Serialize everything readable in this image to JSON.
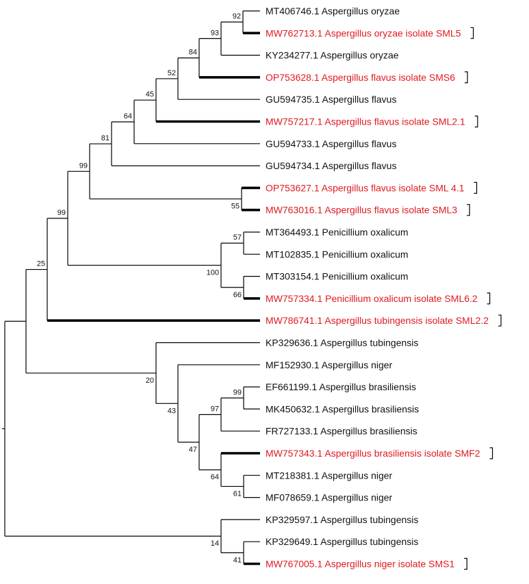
{
  "colors": {
    "reference": "#111111",
    "isolate": "#e0191f",
    "branch": "#000000"
  },
  "leaves": [
    {
      "id": "L1",
      "label": "MT406746.1 Aspergillus oryzae",
      "highlight": false
    },
    {
      "id": "L2",
      "label": "MW762713.1 Aspergillus oryzae isolate SML5",
      "highlight": true
    },
    {
      "id": "L3",
      "label": "KY234277.1 Aspergillus oryzae",
      "highlight": false
    },
    {
      "id": "L4",
      "label": "OP753628.1 Aspergillus flavus isolate SMS6",
      "highlight": true
    },
    {
      "id": "L5",
      "label": "GU594735.1 Aspergillus flavus",
      "highlight": false
    },
    {
      "id": "L6",
      "label": "MW757217.1 Aspergillus flavus isolate SML2.1",
      "highlight": true
    },
    {
      "id": "L7",
      "label": "GU594733.1 Aspergillus flavus",
      "highlight": false
    },
    {
      "id": "L8",
      "label": "GU594734.1 Aspergillus flavus",
      "highlight": false
    },
    {
      "id": "L9",
      "label": "OP753627.1 Aspergillus flavus isolate SML 4.1",
      "highlight": true
    },
    {
      "id": "L10",
      "label": "MW763016.1 Aspergillus flavus isolate SML3",
      "highlight": true
    },
    {
      "id": "L11",
      "label": "MT364493.1 Penicillium oxalicum",
      "highlight": false
    },
    {
      "id": "L12",
      "label": "MT102835.1 Penicillium oxalicum",
      "highlight": false
    },
    {
      "id": "L13",
      "label": "MT303154.1 Penicillium oxalicum",
      "highlight": false
    },
    {
      "id": "L14",
      "label": "MW757334.1 Penicillium oxalicum isolate SML6.2",
      "highlight": true
    },
    {
      "id": "L15",
      "label": "MW786741.1 Aspergillus tubingensis isolate SML2.2",
      "highlight": true
    },
    {
      "id": "L16",
      "label": "KP329636.1 Aspergillus tubingensis",
      "highlight": false
    },
    {
      "id": "L17",
      "label": "MF152930.1 Aspergillus niger",
      "highlight": false
    },
    {
      "id": "L18",
      "label": "EF661199.1 Aspergillus brasiliensis",
      "highlight": false
    },
    {
      "id": "L19",
      "label": "MK450632.1 Aspergillus brasiliensis",
      "highlight": false
    },
    {
      "id": "L20",
      "label": "FR727133.1 Aspergillus brasiliensis",
      "highlight": false
    },
    {
      "id": "L21",
      "label": "MW757343.1 Aspergillus brasiliensis isolate SMF2",
      "highlight": true
    },
    {
      "id": "L22",
      "label": "MT218381.1 Aspergillus niger",
      "highlight": false
    },
    {
      "id": "L23",
      "label": "MF078659.1 Aspergillus niger",
      "highlight": false
    },
    {
      "id": "L24",
      "label": "KP329597.1 Aspergillus tubingensis",
      "highlight": false
    },
    {
      "id": "L25",
      "label": "KP329649.1 Aspergillus tubingensis",
      "highlight": false
    },
    {
      "id": "L26",
      "label": "MW767005.1 Aspergillus niger isolate SMS1",
      "highlight": true
    }
  ],
  "bootstrap": [
    {
      "node": "N_L1_L2",
      "value": "92"
    },
    {
      "node": "N_oryzae",
      "value": "93"
    },
    {
      "node": "N_84",
      "value": "84"
    },
    {
      "node": "N_52",
      "value": "52"
    },
    {
      "node": "N_45",
      "value": "45"
    },
    {
      "node": "N_64a",
      "value": "64"
    },
    {
      "node": "N_81",
      "value": "81"
    },
    {
      "node": "N_flavus_all",
      "value": "99"
    },
    {
      "node": "N_L9_L10",
      "value": "55"
    },
    {
      "node": "N_L11_L12",
      "value": "57"
    },
    {
      "node": "N_penicillium",
      "value": "100"
    },
    {
      "node": "N_L13_L14",
      "value": "66"
    },
    {
      "node": "N_upper",
      "value": "99"
    },
    {
      "node": "N_root_upper",
      "value": "25"
    },
    {
      "node": "N_L18_L19",
      "value": "99"
    },
    {
      "node": "N_bras",
      "value": "97"
    },
    {
      "node": "N_L22_L23",
      "value": "61"
    },
    {
      "node": "N_L21_group",
      "value": "64"
    },
    {
      "node": "N_47",
      "value": "47"
    },
    {
      "node": "N_43",
      "value": "43"
    },
    {
      "node": "N_20",
      "value": "20"
    },
    {
      "node": "N_L25_L26",
      "value": "41"
    },
    {
      "node": "N_tub_bottom",
      "value": "14"
    }
  ]
}
